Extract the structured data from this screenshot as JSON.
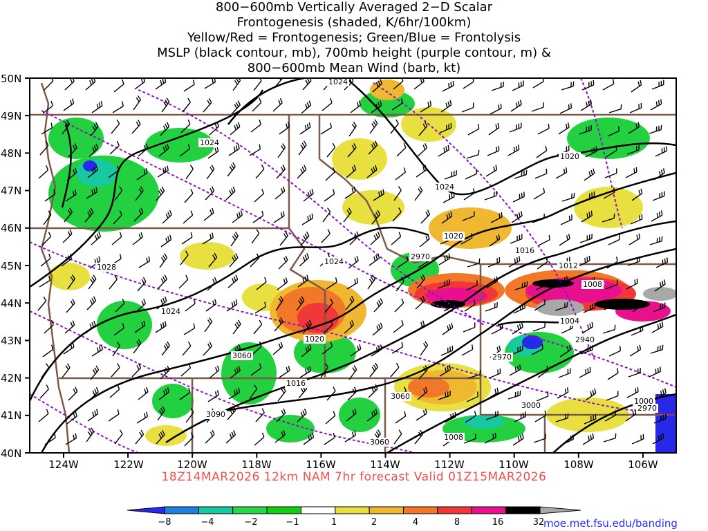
{
  "title_lines": [
    "800−600mb Vertically Averaged 2−D Scalar",
    "Frontogenesis (shaded, K/6hr/100km)",
    "Yellow/Red = Frontogenesis;  Green/Blue = Frontolysis",
    "MSLP (black contour, mb), 700mb height (purple contour, m) &",
    "800−600mb Mean Wind (barb, kt)"
  ],
  "lat_labels": [
    "50N",
    "49N",
    "48N",
    "47N",
    "46N",
    "45N",
    "44N",
    "43N",
    "42N",
    "41N",
    "40N"
  ],
  "lon_labels": [
    "124W",
    "122W",
    "120W",
    "118W",
    "116W",
    "114W",
    "112W",
    "110W",
    "108W",
    "106W"
  ],
  "caption": "18Z14MAR2026 12km NAM 7hr forecast Valid 01Z15MAR2026",
  "credit": "moe.met.fsu.edu/banding",
  "colorbar": {
    "labels": [
      "−8",
      "−4",
      "−2",
      "−1",
      "1",
      "2",
      "4",
      "8",
      "16",
      "32"
    ],
    "colors": [
      "#2828e8",
      "#1f7fe0",
      "#18c8a0",
      "#28d848",
      "#10d010",
      "#ffffff",
      "#e8e040",
      "#f0b830",
      "#f07828",
      "#f03838",
      "#e8108c",
      "#000000",
      "#a8a8a8"
    ]
  },
  "mslp_labels": [
    "1024",
    "1024",
    "1024",
    "1024",
    "1024",
    "1020",
    "1020",
    "1016",
    "1012",
    "1008",
    "1004",
    "1020",
    "1016",
    "1008",
    "1000",
    "1028"
  ],
  "height_labels": [
    "2970",
    "2940",
    "2970",
    "3060",
    "3090",
    "3060",
    "3000",
    "3060",
    "2970"
  ],
  "legend_colors": {
    "mslp": "#000000",
    "height": "#9010c8",
    "borders": "#7a5a48",
    "barbs": "#000000"
  }
}
